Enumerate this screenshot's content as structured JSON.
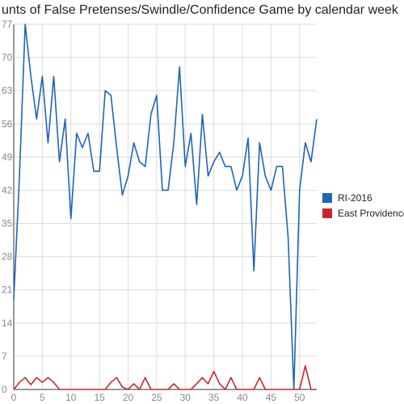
{
  "chart_data": {
    "type": "line",
    "title": "unts of False Pretenses/Swindle/Confidence Game by calendar week",
    "xlabel": "",
    "ylabel": "",
    "xlim": [
      0,
      53
    ],
    "ylim": [
      0,
      77
    ],
    "x_ticks": [
      0,
      5,
      10,
      15,
      20,
      25,
      30,
      35,
      40,
      45,
      50
    ],
    "y_ticks": [
      0,
      7,
      14,
      21,
      28,
      35,
      42,
      49,
      56,
      63,
      70,
      77
    ],
    "grid": true,
    "legend_position": "right",
    "x": [
      0,
      1,
      2,
      3,
      4,
      5,
      6,
      7,
      8,
      9,
      10,
      11,
      12,
      13,
      14,
      15,
      16,
      17,
      18,
      19,
      20,
      21,
      22,
      23,
      24,
      25,
      26,
      27,
      28,
      29,
      30,
      31,
      32,
      33,
      34,
      35,
      36,
      37,
      38,
      39,
      40,
      41,
      42,
      43,
      44,
      45,
      46,
      47,
      48,
      49,
      50,
      51,
      52,
      53
    ],
    "series": [
      {
        "name": "RI-2016",
        "color": "#1f64b8",
        "values": [
          19,
          45,
          77,
          66,
          57,
          66,
          52,
          66,
          48,
          57,
          36,
          54,
          51,
          54,
          46,
          46,
          63,
          62,
          51,
          41,
          45,
          52,
          48,
          47,
          58,
          62,
          42,
          42,
          52,
          68,
          47,
          54,
          39,
          58,
          45,
          48,
          50,
          47,
          47,
          42,
          45,
          53,
          25,
          52,
          45,
          42,
          47,
          47,
          32,
          0,
          42,
          52,
          48,
          57
        ]
      },
      {
        "name": "East Providence",
        "color": "#c8262c",
        "values": [
          0,
          1.5,
          2.5,
          1,
          2.5,
          1.5,
          2.5,
          1.5,
          0,
          0,
          0,
          0,
          0,
          0,
          0,
          0,
          0,
          1.5,
          2.5,
          0.5,
          0,
          1.2,
          0,
          2.5,
          0,
          0,
          0,
          0,
          1.2,
          0,
          0,
          0,
          1.2,
          2.5,
          1.2,
          3.8,
          1.2,
          0,
          2.5,
          0,
          0,
          0,
          0,
          2.5,
          0,
          0,
          0,
          0,
          0,
          0,
          0,
          5,
          0,
          0
        ]
      }
    ]
  }
}
